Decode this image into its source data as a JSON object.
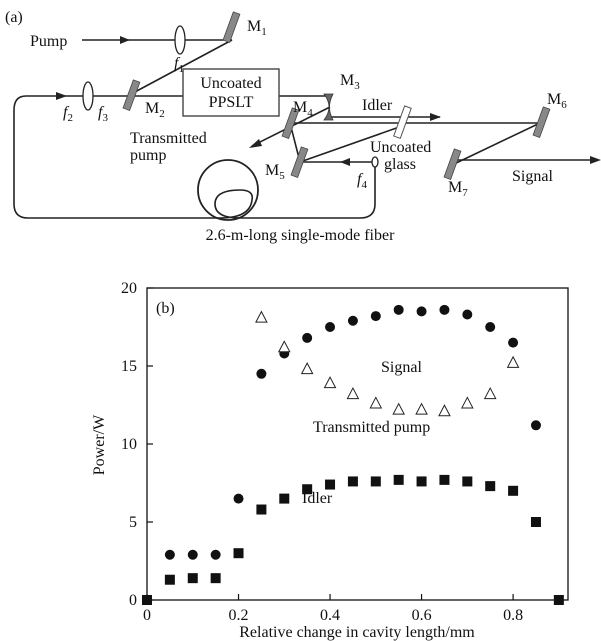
{
  "diagram": {
    "panel_label": "(a)",
    "pump": "Pump",
    "f1": "f",
    "f1_sub": "1",
    "m1": "M",
    "m1_sub": "1",
    "f2": "f",
    "f2_sub": "2",
    "f3": "f",
    "f3_sub": "3",
    "m2": "M",
    "m2_sub": "2",
    "crystal_line1": "Uncoated",
    "crystal_line2": "PPSLT",
    "m3": "M",
    "m3_sub": "3",
    "idler": "Idler",
    "m4": "M",
    "m4_sub": "4",
    "m6": "M",
    "m6_sub": "6",
    "transmitted_line1": "Transmitted",
    "transmitted_line2": "pump",
    "glass_line1": "Uncoated",
    "glass_line2": "glass",
    "m5": "M",
    "m5_sub": "5",
    "f4": "f",
    "f4_sub": "4",
    "m7": "M",
    "m7_sub": "7",
    "signal": "Signal",
    "fiber": "2.6-m-long single-mode fiber"
  },
  "chart_data": {
    "type": "scatter",
    "panel_label": "(b)",
    "xlabel": "Relative change in cavity length/mm",
    "ylabel": "Power/W",
    "xlim": [
      0,
      0.92
    ],
    "ylim": [
      0,
      20
    ],
    "xticks": [
      "0",
      "0.2",
      "0.4",
      "0.6",
      "0.8"
    ],
    "xtick_values": [
      0,
      0.2,
      0.4,
      0.6,
      0.8
    ],
    "yticks": [
      "0",
      "5",
      "10",
      "15",
      "20"
    ],
    "ytick_values": [
      0,
      5,
      10,
      15,
      20
    ],
    "annotations": {
      "signal": "Signal",
      "transmitted": "Transmitted pump",
      "idler": "Idler"
    },
    "series": [
      {
        "marker": "circle",
        "x": [
          0.05,
          0.1,
          0.15,
          0.2,
          0.25,
          0.3,
          0.35,
          0.4,
          0.45,
          0.5,
          0.55,
          0.6,
          0.65,
          0.7,
          0.75,
          0.8,
          0.85
        ],
        "y": [
          2.9,
          2.9,
          2.9,
          6.5,
          14.5,
          15.8,
          16.8,
          17.5,
          17.9,
          18.2,
          18.6,
          18.5,
          18.6,
          18.3,
          17.5,
          16.5,
          11.2
        ]
      },
      {
        "marker": "triangle",
        "x": [
          0.25,
          0.3,
          0.35,
          0.4,
          0.45,
          0.5,
          0.55,
          0.6,
          0.65,
          0.7,
          0.75,
          0.8
        ],
        "y": [
          18.1,
          16.2,
          14.8,
          13.9,
          13.2,
          12.6,
          12.2,
          12.2,
          12.1,
          12.6,
          13.2,
          15.2
        ]
      },
      {
        "marker": "square",
        "x": [
          0,
          0.05,
          0.1,
          0.15,
          0.2,
          0.25,
          0.3,
          0.35,
          0.4,
          0.45,
          0.5,
          0.55,
          0.6,
          0.65,
          0.7,
          0.75,
          0.8,
          0.85,
          0.9
        ],
        "y": [
          0,
          1.3,
          1.4,
          1.4,
          3.0,
          5.8,
          6.5,
          7.1,
          7.4,
          7.6,
          7.6,
          7.7,
          7.6,
          7.7,
          7.6,
          7.3,
          7.0,
          5.0,
          0
        ]
      }
    ]
  }
}
